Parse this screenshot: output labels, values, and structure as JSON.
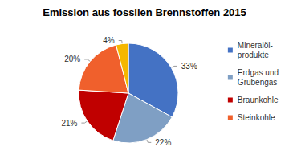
{
  "chart_data": {
    "type": "pie",
    "title": "Emission aus fossilen Brennstoffen 2015",
    "categories": [
      "Mineralöl-\nprodukte",
      "Erdgas und\nGrubengas",
      "Braunkohle",
      "Steinkohle",
      null
    ],
    "values": [
      33,
      22,
      21,
      20,
      4
    ],
    "value_labels": [
      "33%",
      "22%",
      "21%",
      "20%",
      "4%"
    ],
    "colors": [
      "#4472c4",
      "#7f9fc4",
      "#c00000",
      "#f0602c",
      "#f5b700"
    ],
    "data_labels": true,
    "legend": "right"
  }
}
